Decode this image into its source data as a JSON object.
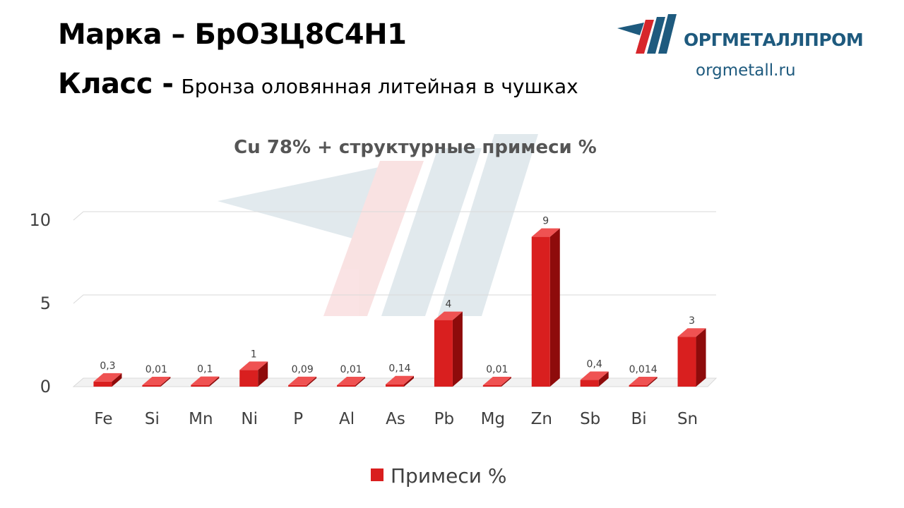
{
  "header": {
    "grade_label": "Марка",
    "grade_value": "– БрОЗЦ8С4Н1",
    "class_label": "Класс -",
    "class_value": "Бронза оловянная литейная в чушках"
  },
  "logo": {
    "name": "ОРГМЕТАЛЛПРОМ",
    "url": "orgmetall.ru"
  },
  "colors": {
    "bar_front": "#d91f1f",
    "bar_side": "#8e0b0b",
    "bar_top": "#ef5252",
    "logo_blue": "#1e5a7e",
    "logo_red": "#d7262b"
  },
  "chart_data": {
    "type": "bar",
    "title": "Cu 78% + структурные примеси %",
    "categories": [
      "Fe",
      "Si",
      "Mn",
      "Ni",
      "P",
      "Al",
      "As",
      "Pb",
      "Mg",
      "Zn",
      "Sb",
      "Bi",
      "Sn"
    ],
    "series": [
      {
        "name": "Примеси %",
        "values": [
          0.3,
          0.01,
          0.1,
          1,
          0.09,
          0.01,
          0.14,
          4,
          0.01,
          9,
          0.4,
          0.014,
          3
        ],
        "labels": [
          "0,3",
          "0,01",
          "0,1",
          "1",
          "0,09",
          "0,01",
          "0,14",
          "4",
          "0,01",
          "9",
          "0,4",
          "0,014",
          "3"
        ]
      }
    ],
    "yticks": [
      0,
      5,
      10
    ],
    "ylim": [
      0,
      10
    ],
    "grid": true,
    "legend": "bottom"
  }
}
